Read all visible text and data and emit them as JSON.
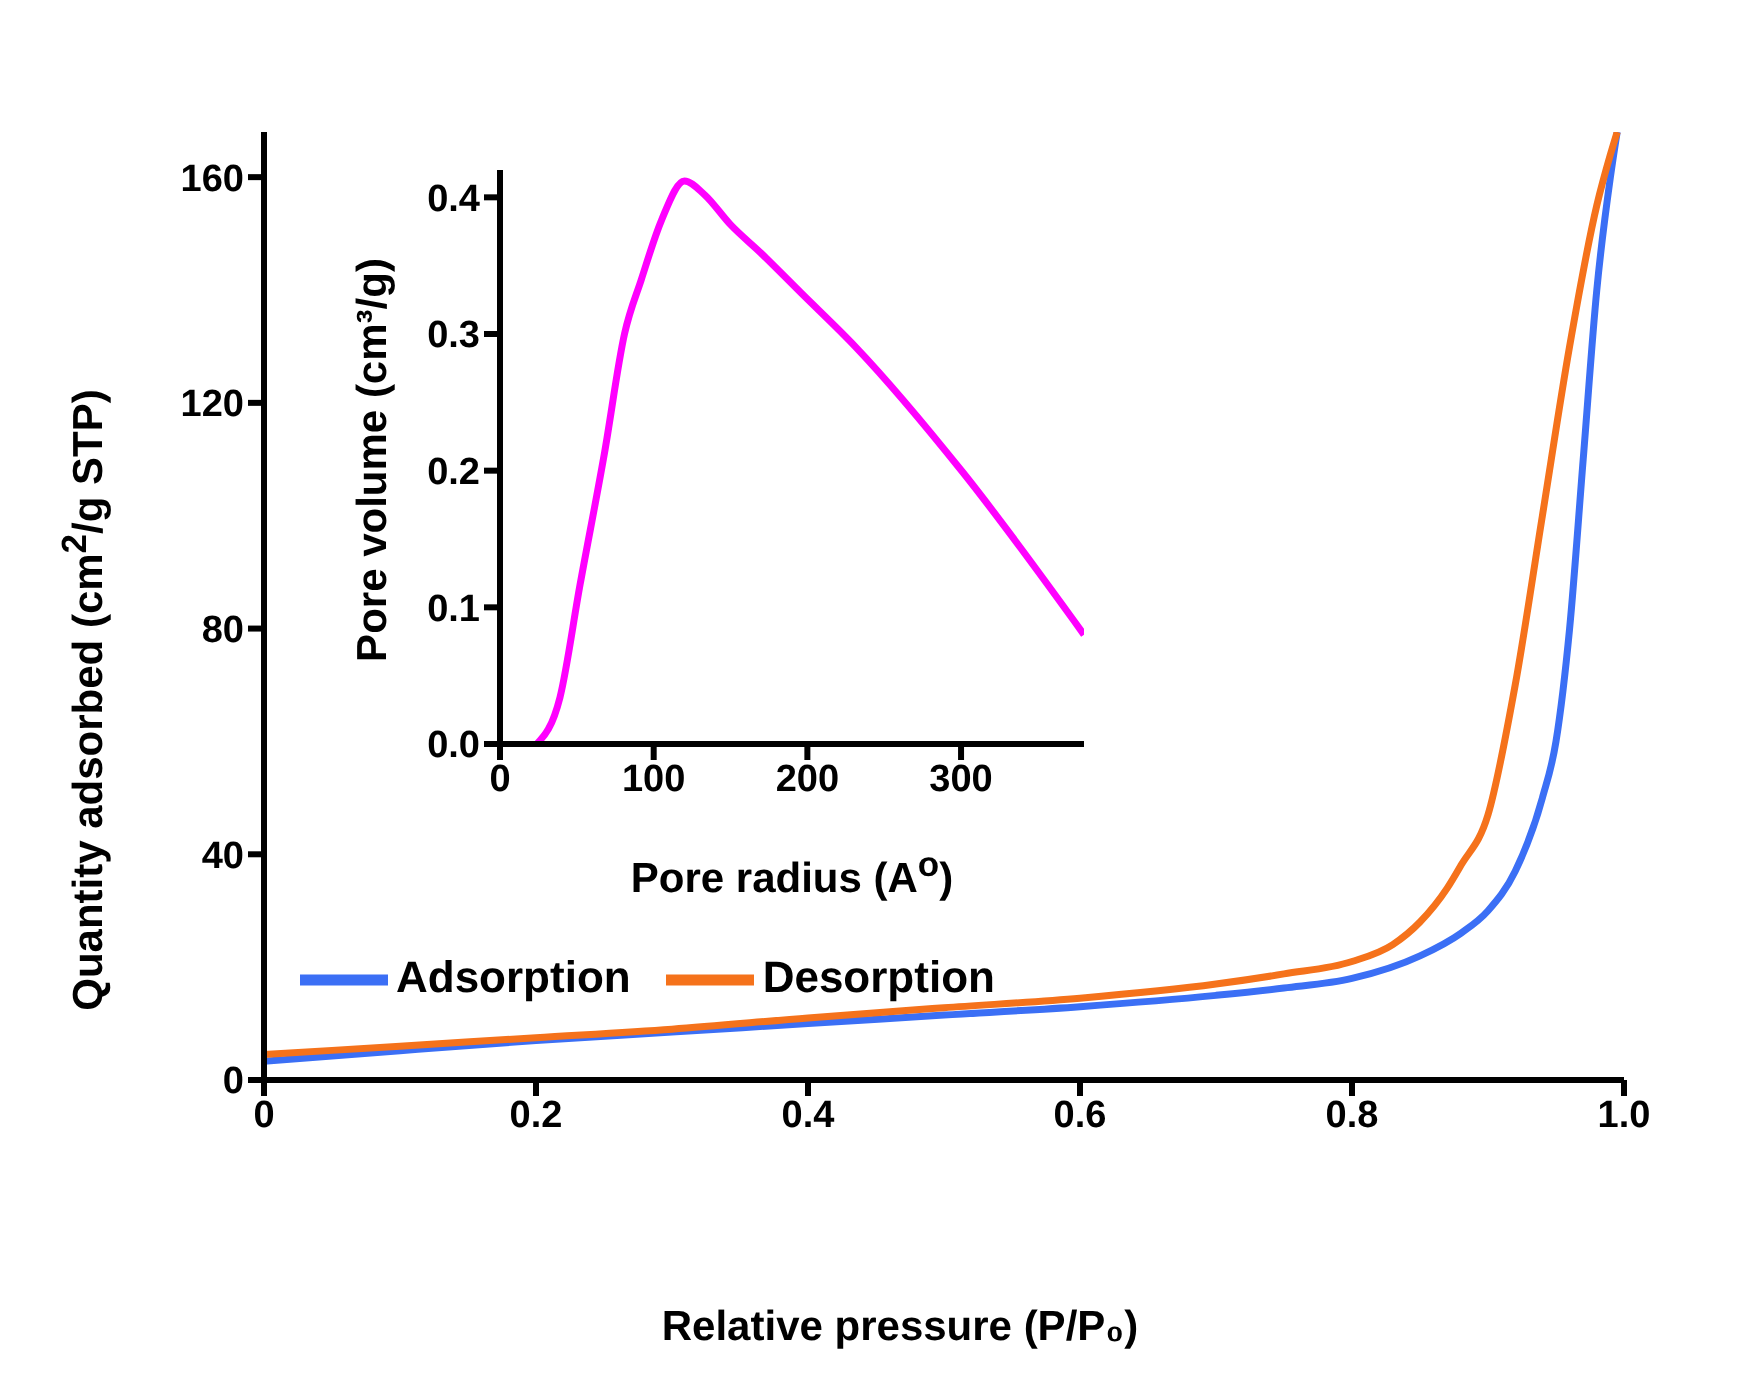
{
  "chart_data": [
    {
      "type": "line",
      "xlabel": "Relative pressure (P/P₀)",
      "ylabel": "Quantity adsorbed (cm$^{2}$/g STP)",
      "xlim": [
        0,
        1
      ],
      "ylim": [
        0,
        168
      ],
      "xticks": [
        0,
        0.2,
        0.4,
        0.6,
        0.8,
        {
          "value": 1,
          "label": "1.0"
        }
      ],
      "yticks": [
        0,
        40,
        80,
        120,
        160
      ],
      "grid": false,
      "legend": "bottom left",
      "marker": "none",
      "line_style": "solid",
      "series": [
        {
          "name": "Adsorption",
          "color": "#3b6ff5",
          "x": [
            0,
            0.1,
            0.2,
            0.3,
            0.4,
            0.5,
            0.6,
            0.7,
            0.75,
            0.8,
            0.85,
            0.88,
            0.9,
            0.92,
            0.94,
            0.95,
            0.96,
            0.97,
            0.98,
            0.99,
            0.995
          ],
          "values": [
            3.3,
            5.2,
            7,
            8.5,
            10,
            11.5,
            13,
            15,
            16.3,
            18,
            22,
            26,
            30,
            37,
            50,
            60,
            80,
            110,
            140,
            160,
            168
          ]
        },
        {
          "name": "Desorption",
          "color": "#f5721b",
          "x": [
            0,
            0.1,
            0.2,
            0.3,
            0.4,
            0.5,
            0.6,
            0.7,
            0.75,
            0.8,
            0.83,
            0.85,
            0.87,
            0.88,
            0.9,
            0.92,
            0.94,
            0.96,
            0.98,
            0.99,
            0.995
          ],
          "values": [
            4.5,
            6,
            7.5,
            9,
            11,
            12.8,
            14.5,
            17,
            18.8,
            21,
            24,
            28,
            34,
            38,
            47,
            70,
            100,
            130,
            155,
            164,
            168
          ]
        }
      ]
    },
    {
      "type": "line",
      "xlabel": "Pore radius (A$^{o}$)",
      "ylabel": "Pore volume (cm³/g)",
      "xlim": [
        0,
        380
      ],
      "ylim": [
        0,
        0.42
      ],
      "xticks": [
        0,
        100,
        200,
        300
      ],
      "yticks": [
        {
          "value": 0,
          "label": "0.0"
        },
        0.1,
        0.2,
        0.3,
        0.4
      ],
      "grid": false,
      "marker": "none",
      "line_style": "solid",
      "series": [
        {
          "color": "#ff00ff",
          "x": [
            24,
            39,
            52,
            68,
            81,
            92,
            105,
            120,
            133,
            150,
            170,
            196,
            231,
            301,
            380
          ],
          "values": [
            0,
            0.034,
            0.116,
            0.213,
            0.3,
            0.34,
            0.383,
            0.412,
            0.402,
            0.38,
            0.359,
            0.33,
            0.291,
            0.199,
            0.08
          ]
        }
      ]
    }
  ]
}
